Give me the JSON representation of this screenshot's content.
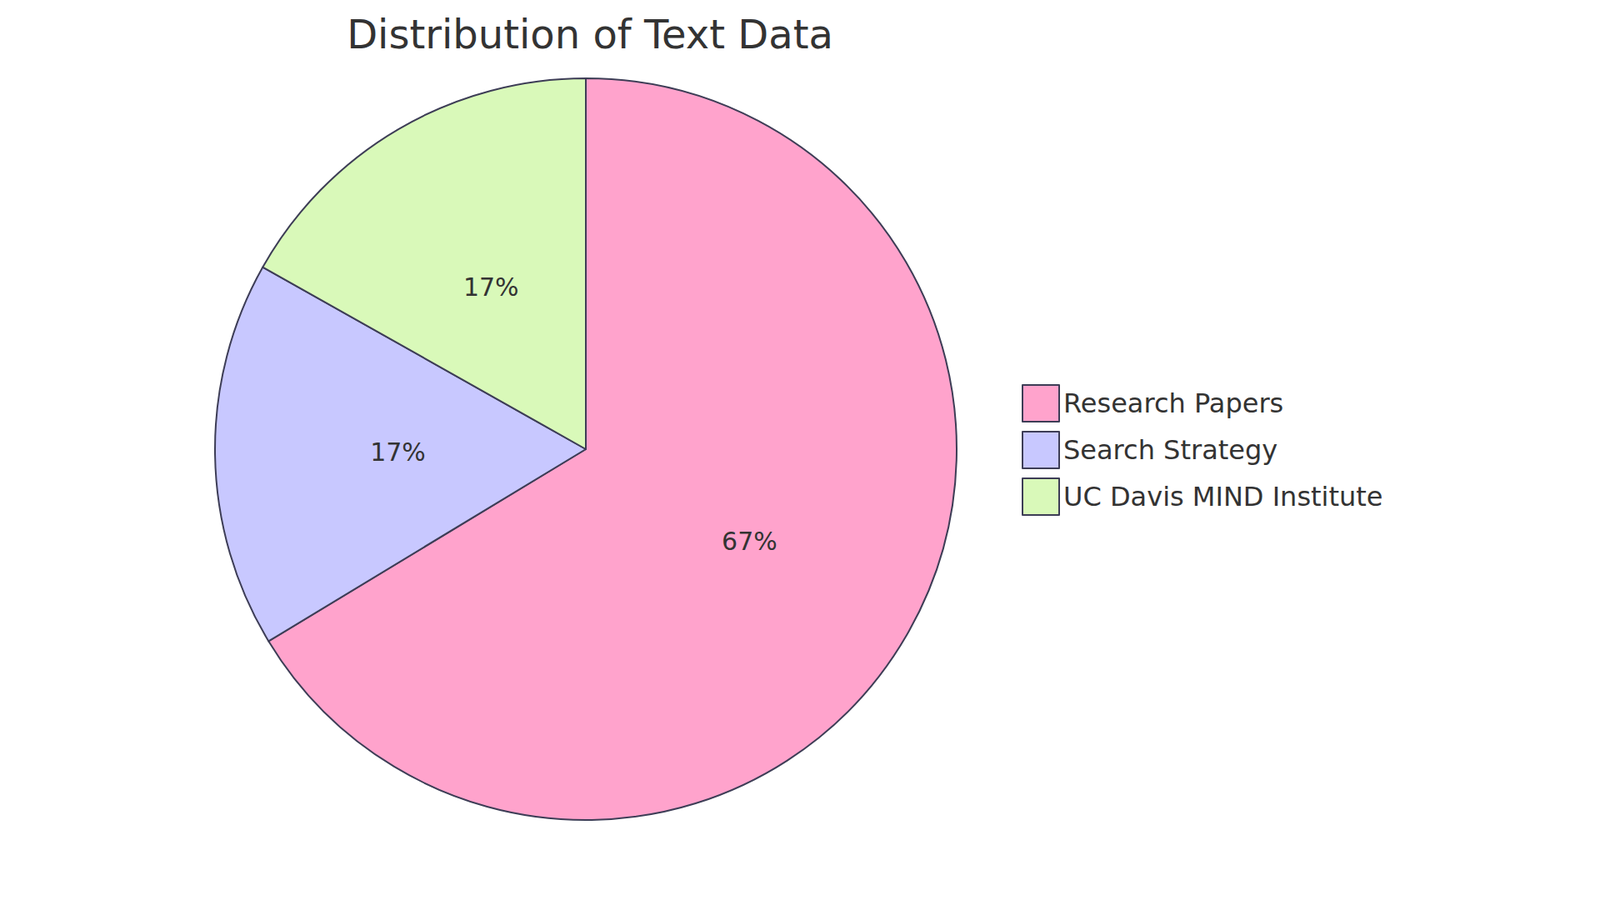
{
  "chart_data": {
    "type": "pie",
    "title": "Distribution of Text Data",
    "categories": [
      "Research Papers",
      "Search Strategy",
      "UC Davis MIND Institute"
    ],
    "values": [
      67,
      17,
      17
    ],
    "value_labels": [
      "67%",
      "17%",
      "17%"
    ],
    "colors": [
      "#ffa3cc",
      "#c8c8ff",
      "#d9f9b9"
    ],
    "data_labels": true,
    "legend": "right"
  }
}
